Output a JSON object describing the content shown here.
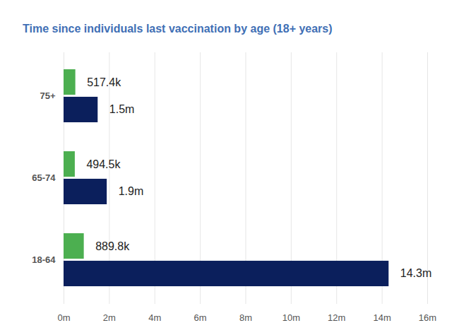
{
  "chart_data": {
    "type": "bar",
    "title": "Time since individuals last vaccination by age (18+ years)",
    "orientation": "horizontal",
    "categories": [
      "75+",
      "65-74",
      "18-64"
    ],
    "series": [
      {
        "color": "#4caf50",
        "values": [
          517400,
          494500,
          889800
        ],
        "value_labels": [
          "517.4k",
          "494.5k",
          "889.8k"
        ]
      },
      {
        "color": "#0b1f5c",
        "values": [
          1500000,
          1900000,
          14300000
        ],
        "value_labels": [
          "1.5m",
          "1.9m",
          "14.3m"
        ]
      }
    ],
    "xlim": [
      0,
      16000000
    ],
    "xticks": [
      {
        "value": 0,
        "label": "0m"
      },
      {
        "value": 2000000,
        "label": "2m"
      },
      {
        "value": 4000000,
        "label": "4m"
      },
      {
        "value": 6000000,
        "label": "6m"
      },
      {
        "value": 8000000,
        "label": "8m"
      },
      {
        "value": 10000000,
        "label": "10m"
      },
      {
        "value": 12000000,
        "label": "12m"
      },
      {
        "value": 14000000,
        "label": "14m"
      },
      {
        "value": 16000000,
        "label": "16m"
      }
    ],
    "grid": true,
    "data_labels": true
  }
}
